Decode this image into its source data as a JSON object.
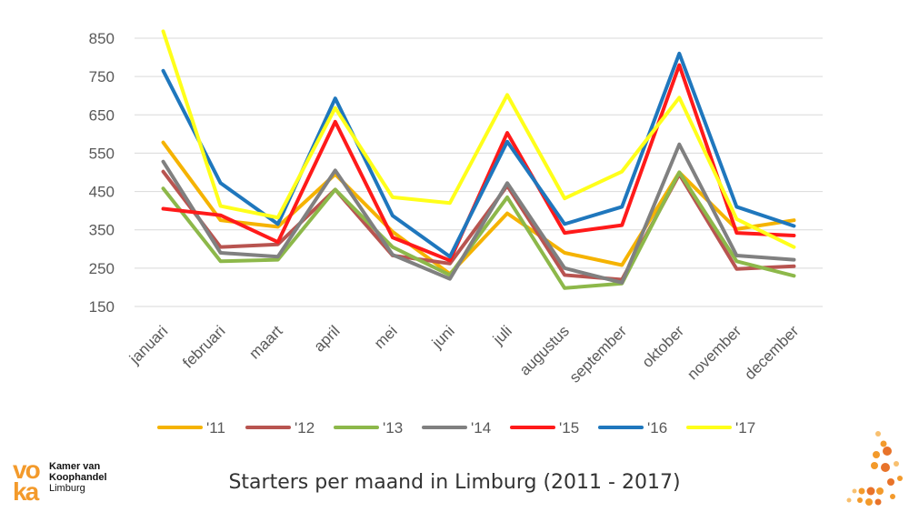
{
  "chart_data": {
    "type": "line",
    "title": "Starters per maand in Limburg (2011 - 2017)",
    "xlabel": "",
    "ylabel": "",
    "ylim": [
      150,
      850
    ],
    "yticks": [
      150,
      250,
      350,
      450,
      550,
      650,
      750,
      850
    ],
    "grid": true,
    "legend": "bottom",
    "categories": [
      "januari",
      "februari",
      "maart",
      "april",
      "mei",
      "juni",
      "juli",
      "augustus",
      "september",
      "oktober",
      "november",
      "december"
    ],
    "series": [
      {
        "name": "'11",
        "color": "#f5b301",
        "values": [
          578,
          375,
          358,
          495,
          345,
          235,
          393,
          290,
          258,
          500,
          352,
          375
        ]
      },
      {
        "name": "'12",
        "color": "#b85450",
        "values": [
          502,
          305,
          312,
          455,
          283,
          262,
          465,
          232,
          220,
          495,
          248,
          255
        ]
      },
      {
        "name": "'13",
        "color": "#8db84a",
        "values": [
          458,
          268,
          272,
          455,
          305,
          232,
          435,
          198,
          210,
          500,
          268,
          230
        ]
      },
      {
        "name": "'14",
        "color": "#808080",
        "values": [
          528,
          290,
          280,
          505,
          285,
          222,
          472,
          250,
          212,
          573,
          283,
          272
        ]
      },
      {
        "name": "'15",
        "color": "#ff1a1a",
        "values": [
          405,
          388,
          318,
          632,
          330,
          270,
          603,
          342,
          362,
          780,
          342,
          335
        ]
      },
      {
        "name": "'16",
        "color": "#1f77bd",
        "values": [
          765,
          472,
          365,
          693,
          387,
          280,
          580,
          365,
          410,
          810,
          410,
          360
        ]
      },
      {
        "name": "'17",
        "color": "#ffff1a",
        "values": [
          868,
          412,
          382,
          668,
          435,
          420,
          702,
          432,
          502,
          695,
          378,
          305
        ]
      }
    ]
  },
  "caption": "Starters per maand in Limburg (2011 - 2017)",
  "logo": {
    "mark": "vo ka",
    "line1": "Kamer van",
    "line2": "Koophandel",
    "line3": "Limburg"
  }
}
